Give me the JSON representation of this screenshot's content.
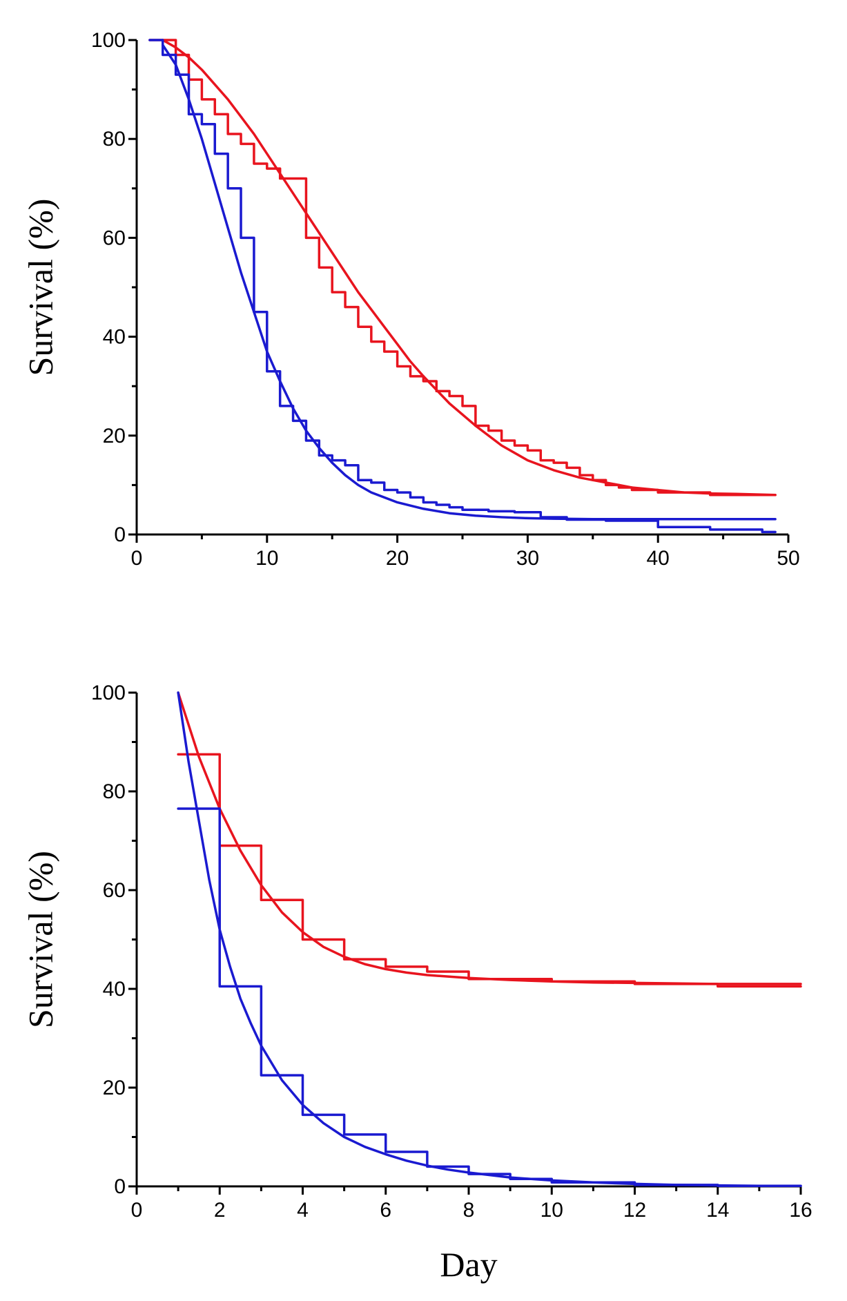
{
  "chart_data": [
    {
      "type": "line",
      "ylabel": "Survival (%)",
      "xlabel": "",
      "xlim": [
        0,
        50
      ],
      "ylim": [
        0,
        100
      ],
      "xticks_major": [
        0,
        10,
        20,
        30,
        40,
        50
      ],
      "xticks_minor": [
        5,
        15,
        25,
        35,
        45
      ],
      "yticks_major": [
        0,
        20,
        40,
        60,
        80,
        100
      ],
      "yticks_minor": [
        10,
        30,
        50,
        70,
        90
      ],
      "series": [
        {
          "name": "red-fitted",
          "kind": "curve",
          "color": "#e8141e",
          "x": [
            2,
            3,
            4,
            5,
            6,
            7,
            8,
            9,
            10,
            11,
            12,
            13,
            14,
            15,
            16,
            17,
            18,
            19,
            20,
            21,
            22,
            24,
            26,
            28,
            30,
            32,
            34,
            36,
            38,
            40,
            42,
            44,
            46,
            49
          ],
          "y": [
            100,
            98.5,
            96.5,
            94,
            91,
            88,
            84.5,
            81,
            77,
            73,
            69,
            65,
            61,
            57,
            53,
            49,
            45.5,
            42,
            38.5,
            35,
            32,
            26.5,
            22,
            18,
            15,
            13,
            11.5,
            10.5,
            9.5,
            9,
            8.5,
            8.3,
            8.2,
            8
          ]
        },
        {
          "name": "red-observed",
          "kind": "step",
          "color": "#e8141e",
          "x": [
            1,
            3,
            4,
            5,
            6,
            7,
            8,
            9,
            10,
            11,
            12,
            13,
            14,
            15,
            16,
            17,
            18,
            19,
            20,
            21,
            22,
            23,
            24,
            25,
            26,
            27,
            28,
            29,
            30,
            31,
            32,
            33,
            34,
            35,
            36,
            37,
            38,
            39,
            40,
            42,
            44,
            46,
            48,
            49
          ],
          "y": [
            100,
            97,
            92,
            88,
            85,
            81,
            79,
            75,
            74,
            72,
            72,
            60,
            54,
            49,
            46,
            42,
            39,
            37,
            34,
            32,
            31,
            29,
            28,
            26,
            22,
            21,
            19,
            18,
            17,
            15,
            14.5,
            13.5,
            12,
            11,
            10,
            9.5,
            9,
            9,
            8.5,
            8.5,
            8,
            8,
            8,
            8
          ]
        },
        {
          "name": "blue-fitted",
          "kind": "curve",
          "color": "#1a1ad0",
          "x": [
            2,
            3,
            4,
            5,
            6,
            7,
            8,
            9,
            10,
            11,
            12,
            13,
            14,
            15,
            16,
            17,
            18,
            20,
            22,
            24,
            26,
            28,
            30,
            32,
            35,
            40,
            45,
            49
          ],
          "y": [
            99,
            95,
            88,
            80,
            71,
            62,
            53,
            45,
            37,
            31,
            25.5,
            21,
            17.5,
            14.5,
            12,
            10,
            8.5,
            6.5,
            5.2,
            4.3,
            3.8,
            3.5,
            3.3,
            3.2,
            3.1,
            3.1,
            3.1,
            3.1
          ]
        },
        {
          "name": "blue-observed",
          "kind": "step",
          "color": "#1a1ad0",
          "x": [
            1,
            2,
            3,
            4,
            5,
            6,
            7,
            8,
            9,
            10,
            11,
            12,
            13,
            14,
            15,
            16,
            17,
            18,
            19,
            20,
            21,
            22,
            23,
            24,
            25,
            27,
            29,
            31,
            33,
            36,
            40,
            44,
            48,
            49
          ],
          "y": [
            100,
            97,
            93,
            85,
            83,
            77,
            70,
            60,
            45,
            33,
            26,
            23,
            19,
            16,
            15,
            14,
            11,
            10.5,
            9,
            8.5,
            7.5,
            6.5,
            6,
            5.5,
            5,
            4.7,
            4.5,
            3.5,
            3,
            2.8,
            1.5,
            1,
            0.5,
            0.5
          ]
        }
      ]
    },
    {
      "type": "line",
      "ylabel": "Survival (%)",
      "xlabel": "Day",
      "xlim": [
        0,
        16
      ],
      "ylim": [
        0,
        100
      ],
      "xticks_major": [
        0,
        2,
        4,
        6,
        8,
        10,
        12,
        14,
        16
      ],
      "xticks_minor": [
        1,
        3,
        5,
        7,
        9,
        11,
        13,
        15
      ],
      "yticks_major": [
        0,
        20,
        40,
        60,
        80,
        100
      ],
      "yticks_minor": [
        10,
        30,
        50,
        70,
        90
      ],
      "series": [
        {
          "name": "red-fitted",
          "kind": "curve",
          "color": "#e8141e",
          "x": [
            1,
            1.5,
            2,
            2.5,
            3,
            3.5,
            4,
            4.5,
            5,
            5.5,
            6,
            6.5,
            7,
            8,
            9,
            10,
            11,
            12,
            13,
            14,
            15,
            16
          ],
          "y": [
            100,
            87,
            76.5,
            68,
            61,
            55.5,
            51.5,
            48.5,
            46.5,
            45,
            44,
            43.3,
            42.8,
            42.2,
            41.8,
            41.5,
            41.3,
            41.2,
            41.1,
            41,
            41,
            41
          ]
        },
        {
          "name": "red-observed",
          "kind": "step",
          "color": "#e8141e",
          "x": [
            1,
            2,
            3,
            4,
            5,
            6,
            7,
            8,
            10,
            12,
            14,
            16
          ],
          "y": [
            87.5,
            69,
            58,
            50,
            46,
            44.5,
            43.5,
            42,
            41.5,
            41,
            40.5,
            40.5
          ]
        },
        {
          "name": "blue-fitted",
          "kind": "curve",
          "color": "#1a1ad0",
          "x": [
            1,
            1.25,
            1.5,
            1.75,
            2,
            2.25,
            2.5,
            2.75,
            3,
            3.5,
            4,
            4.5,
            5,
            5.5,
            6,
            6.5,
            7,
            7.5,
            8,
            9,
            10,
            11,
            12,
            13,
            14,
            15,
            16
          ],
          "y": [
            100,
            86,
            74,
            62,
            52,
            44.5,
            38,
            33,
            28.5,
            21.5,
            16.5,
            12.8,
            10,
            8,
            6.5,
            5.2,
            4.2,
            3.4,
            2.8,
            1.8,
            1.2,
            0.8,
            0.5,
            0.3,
            0.2,
            0.1,
            0.1
          ]
        },
        {
          "name": "blue-observed",
          "kind": "step",
          "color": "#1a1ad0",
          "x": [
            1,
            2,
            3,
            4,
            5,
            6,
            7,
            8,
            9,
            10,
            12,
            14,
            16
          ],
          "y": [
            76.5,
            40.5,
            22.5,
            14.5,
            10.5,
            7,
            4,
            2.5,
            1.5,
            0.8,
            0.3,
            0.1,
            0.1
          ]
        }
      ]
    }
  ]
}
